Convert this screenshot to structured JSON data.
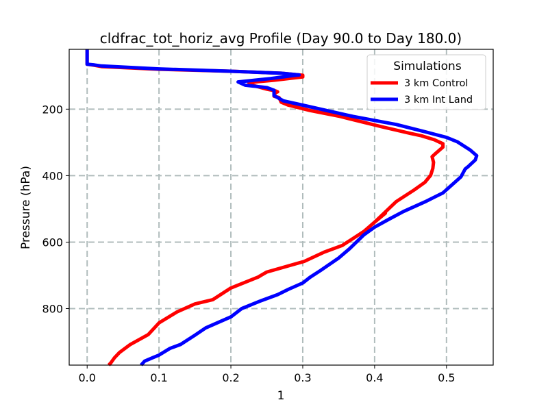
{
  "chart_data": {
    "type": "line",
    "title": "cldfrac_tot_horiz_avg Profile (Day 90.0 to Day 180.0)",
    "xlabel": "1",
    "ylabel": "Pressure (hPa)",
    "xlim": [
      -0.025,
      0.565
    ],
    "ylim": [
      970,
      20
    ],
    "y_inverted": true,
    "x_ticks": [
      0.0,
      0.1,
      0.2,
      0.3,
      0.4,
      0.5
    ],
    "x_tick_labels": [
      "0.0",
      "0.1",
      "0.2",
      "0.3",
      "0.4",
      "0.5"
    ],
    "y_ticks": [
      200,
      400,
      600,
      800
    ],
    "y_tick_labels": [
      "200",
      "400",
      "600",
      "800"
    ],
    "grid": true,
    "legend": {
      "title": "Simulations",
      "placement": "top-right"
    },
    "series": [
      {
        "name": "3 km Control",
        "color": "#ff0000",
        "points": [
          [
            0.03,
            970
          ],
          [
            0.033,
            963
          ],
          [
            0.038,
            948
          ],
          [
            0.045,
            932
          ],
          [
            0.06,
            908
          ],
          [
            0.085,
            878
          ],
          [
            0.1,
            843
          ],
          [
            0.125,
            810
          ],
          [
            0.15,
            786
          ],
          [
            0.175,
            773
          ],
          [
            0.2,
            738
          ],
          [
            0.238,
            705
          ],
          [
            0.25,
            690
          ],
          [
            0.302,
            658
          ],
          [
            0.33,
            630
          ],
          [
            0.355,
            610
          ],
          [
            0.385,
            568
          ],
          [
            0.4,
            540
          ],
          [
            0.415,
            513
          ],
          [
            0.4,
            540
          ],
          [
            0.43,
            478
          ],
          [
            0.455,
            443
          ],
          [
            0.47,
            420
          ],
          [
            0.478,
            399
          ],
          [
            0.481,
            378
          ],
          [
            0.482,
            360
          ],
          [
            0.48,
            343
          ],
          [
            0.485,
            333
          ],
          [
            0.495,
            314
          ],
          [
            0.495,
            304
          ],
          [
            0.483,
            292
          ],
          [
            0.465,
            280
          ],
          [
            0.45,
            273
          ],
          [
            0.41,
            253
          ],
          [
            0.35,
            221
          ],
          [
            0.31,
            204
          ],
          [
            0.28,
            188
          ],
          [
            0.27,
            179
          ],
          [
            0.267,
            165
          ],
          [
            0.26,
            161
          ],
          [
            0.262,
            150
          ],
          [
            0.265,
            148
          ],
          [
            0.262,
            145
          ],
          [
            0.25,
            140
          ],
          [
            0.23,
            128
          ],
          [
            0.225,
            120
          ],
          [
            0.26,
            113
          ],
          [
            0.3,
            103
          ],
          [
            0.3,
            98
          ],
          [
            0.27,
            92
          ],
          [
            0.2,
            86
          ],
          [
            0.1,
            80
          ],
          [
            0.02,
            72
          ],
          [
            0.01,
            68
          ],
          [
            0.0,
            65
          ],
          [
            0.0,
            60
          ],
          [
            0.0,
            20
          ]
        ]
      },
      {
        "name": "3 km Int Land",
        "color": "#0000ff",
        "points": [
          [
            0.075,
            970
          ],
          [
            0.08,
            958
          ],
          [
            0.092,
            947
          ],
          [
            0.1,
            940
          ],
          [
            0.115,
            920
          ],
          [
            0.13,
            908
          ],
          [
            0.15,
            880
          ],
          [
            0.165,
            858
          ],
          [
            0.2,
            825
          ],
          [
            0.215,
            800
          ],
          [
            0.24,
            778
          ],
          [
            0.265,
            758
          ],
          [
            0.28,
            742
          ],
          [
            0.3,
            723
          ],
          [
            0.31,
            706
          ],
          [
            0.325,
            685
          ],
          [
            0.35,
            648
          ],
          [
            0.365,
            620
          ],
          [
            0.385,
            578
          ],
          [
            0.4,
            555
          ],
          [
            0.42,
            531
          ],
          [
            0.44,
            508
          ],
          [
            0.47,
            479
          ],
          [
            0.495,
            452
          ],
          [
            0.51,
            423
          ],
          [
            0.52,
            404
          ],
          [
            0.526,
            380
          ],
          [
            0.53,
            373
          ],
          [
            0.54,
            353
          ],
          [
            0.542,
            340
          ],
          [
            0.533,
            323
          ],
          [
            0.515,
            298
          ],
          [
            0.5,
            285
          ],
          [
            0.47,
            268
          ],
          [
            0.43,
            246
          ],
          [
            0.37,
            222
          ],
          [
            0.3,
            188
          ],
          [
            0.273,
            175
          ],
          [
            0.265,
            165
          ],
          [
            0.26,
            159
          ],
          [
            0.26,
            143
          ],
          [
            0.25,
            135
          ],
          [
            0.22,
            128
          ],
          [
            0.21,
            118
          ],
          [
            0.255,
            108
          ],
          [
            0.29,
            98
          ],
          [
            0.295,
            97
          ],
          [
            0.27,
            92
          ],
          [
            0.2,
            86
          ],
          [
            0.1,
            79
          ],
          [
            0.02,
            70
          ],
          [
            0.01,
            67
          ],
          [
            0.0,
            65
          ],
          [
            0.0,
            58
          ],
          [
            0.0,
            20
          ]
        ]
      }
    ]
  }
}
